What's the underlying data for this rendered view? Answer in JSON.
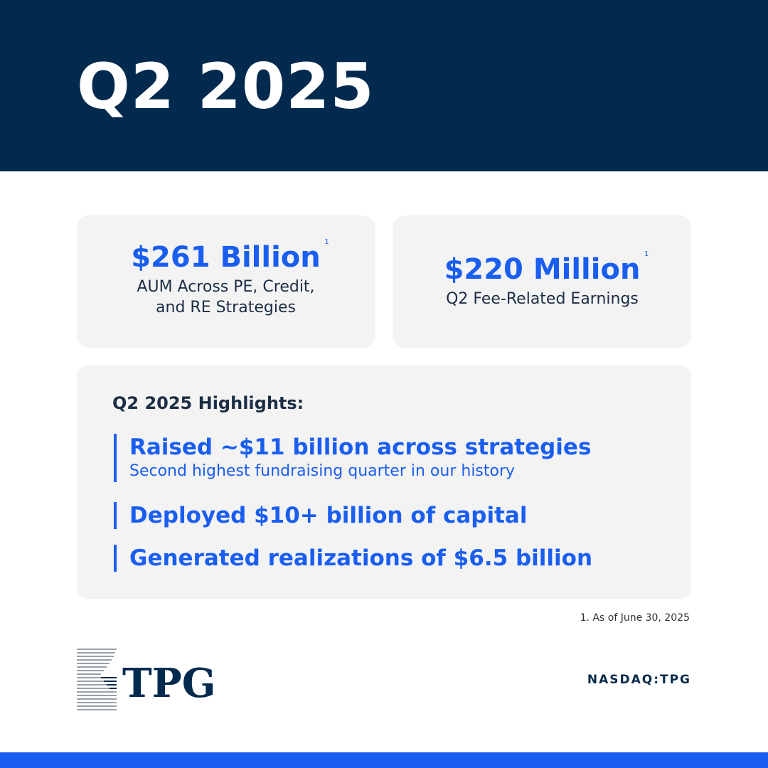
{
  "header": {
    "title": "Q2 2025"
  },
  "stats": [
    {
      "value": "$261 Billion",
      "footnote_marker": "1",
      "description_line1": "AUM Across PE, Credit,",
      "description_line2": "and RE Strategies"
    },
    {
      "value": "$220 Million",
      "footnote_marker": "1",
      "description_line1": "Q2 Fee-Related Earnings"
    }
  ],
  "highlights": {
    "heading": "Q2 2025 Highlights:",
    "items": [
      {
        "title": "Raised ~$11 billion across strategies",
        "subtitle": "Second highest fundraising quarter in our history"
      },
      {
        "title": "Deployed $10+ billion of capital"
      },
      {
        "title": "Generated realizations of $6.5 billion"
      }
    ]
  },
  "footnote": "1. As of June 30, 2025",
  "logo": {
    "text": "TPG",
    "icon": "tpg-logo-icon"
  },
  "ticker": "NASDAQ:TPG",
  "colors": {
    "navy": "#022a4f",
    "accent_blue": "#1a5ef0",
    "card_gray": "#f3f3f3"
  }
}
